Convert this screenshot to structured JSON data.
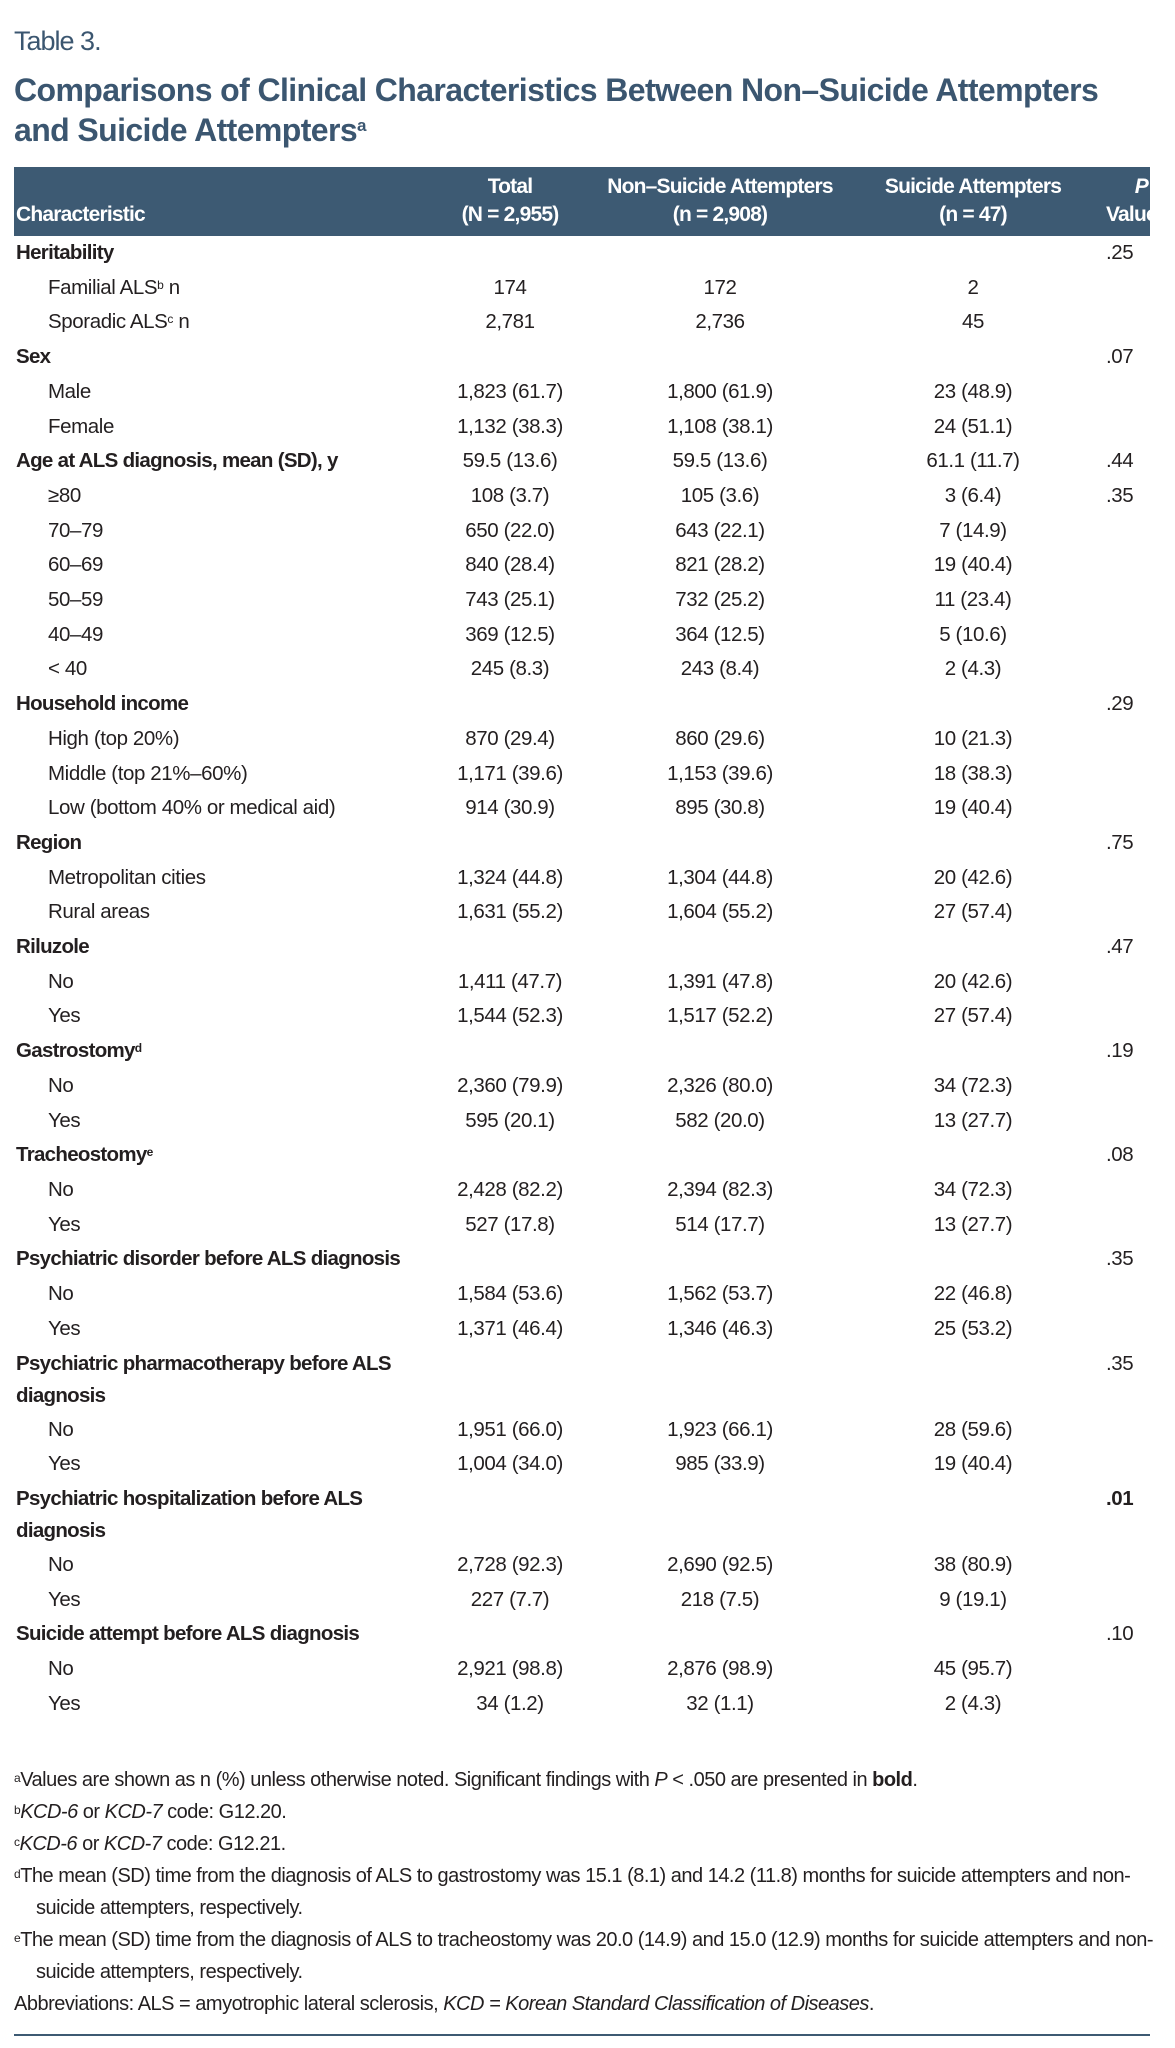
{
  "table_label": "Table 3.",
  "title": "Comparisons of Clinical Characteristics Between Non–Suicide Attempters and Suicide Attempters",
  "title_sup": "a",
  "header": {
    "characteristic": "Characteristic",
    "total": "Total",
    "total_n": "(N = 2,955)",
    "non": "Non–Suicide Attempters",
    "non_n": "(n = 2,908)",
    "sui": "Suicide Attempters",
    "sui_n": "(n = 47)",
    "p1": "P",
    "p2": "Value"
  },
  "rows": [
    {
      "label": "Heritability",
      "bold": true,
      "p": ".25"
    },
    {
      "label": "Familial ALS",
      "sup": "b",
      "suffix": " n",
      "total": "174",
      "non": "172",
      "sui": "2"
    },
    {
      "label": "Sporadic ALS",
      "sup": "c",
      "suffix": " n",
      "total": "2,781",
      "non": "2,736",
      "sui": "45"
    },
    {
      "label": "Sex",
      "bold": true,
      "p": ".07"
    },
    {
      "label": "Male",
      "total": "1,823 (61.7)",
      "non": "1,800 (61.9)",
      "sui": "23 (48.9)"
    },
    {
      "label": "Female",
      "total": "1,132 (38.3)",
      "non": "1,108 (38.1)",
      "sui": "24 (51.1)"
    },
    {
      "label": "Age at ALS diagnosis, mean (SD), y",
      "bold": true,
      "total": "59.5 (13.6)",
      "non": "59.5 (13.6)",
      "sui": "61.1 (11.7)",
      "p": ".44"
    },
    {
      "label": "≥80",
      "total": "108 (3.7)",
      "non": "105 (3.6)",
      "sui": "3 (6.4)",
      "p": ".35"
    },
    {
      "label": "70–79",
      "total": "650 (22.0)",
      "non": "643 (22.1)",
      "sui": "7 (14.9)"
    },
    {
      "label": "60–69",
      "total": "840 (28.4)",
      "non": "821 (28.2)",
      "sui": "19 (40.4)"
    },
    {
      "label": "50–59",
      "total": "743 (25.1)",
      "non": "732 (25.2)",
      "sui": "11 (23.4)"
    },
    {
      "label": "40–49",
      "total": "369 (12.5)",
      "non": "364 (12.5)",
      "sui": "5 (10.6)"
    },
    {
      "label": "< 40",
      "total": "245 (8.3)",
      "non": "243 (8.4)",
      "sui": "2 (4.3)"
    },
    {
      "label": "Household income",
      "bold": true,
      "p": ".29"
    },
    {
      "label": "High (top 20%)",
      "total": "870 (29.4)",
      "non": "860 (29.6)",
      "sui": "10 (21.3)"
    },
    {
      "label": "Middle (top 21%–60%)",
      "total": "1,171 (39.6)",
      "non": "1,153 (39.6)",
      "sui": "18 (38.3)"
    },
    {
      "label": "Low (bottom 40% or medical aid)",
      "total": "914 (30.9)",
      "non": "895 (30.8)",
      "sui": "19 (40.4)"
    },
    {
      "label": "Region",
      "bold": true,
      "p": ".75"
    },
    {
      "label": "Metropolitan cities",
      "total": "1,324 (44.8)",
      "non": "1,304 (44.8)",
      "sui": "20 (42.6)"
    },
    {
      "label": "Rural areas",
      "total": "1,631 (55.2)",
      "non": "1,604 (55.2)",
      "sui": "27 (57.4)"
    },
    {
      "label": "Riluzole",
      "bold": true,
      "p": ".47"
    },
    {
      "label": "No",
      "total": "1,411 (47.7)",
      "non": "1,391 (47.8)",
      "sui": "20 (42.6)"
    },
    {
      "label": "Yes",
      "total": "1,544 (52.3)",
      "non": "1,517 (52.2)",
      "sui": "27 (57.4)"
    },
    {
      "label": "Gastrostomy",
      "sup": "d",
      "bold": true,
      "p": ".19"
    },
    {
      "label": "No",
      "total": "2,360 (79.9)",
      "non": "2,326 (80.0)",
      "sui": "34 (72.3)"
    },
    {
      "label": "Yes",
      "total": "595 (20.1)",
      "non": "582 (20.0)",
      "sui": "13 (27.7)"
    },
    {
      "label": "Tracheostomy",
      "sup": "e",
      "bold": true,
      "p": ".08"
    },
    {
      "label": "No",
      "total": "2,428 (82.2)",
      "non": "2,394 (82.3)",
      "sui": "34 (72.3)"
    },
    {
      "label": "Yes",
      "total": "527 (17.8)",
      "non": "514 (17.7)",
      "sui": "13 (27.7)"
    },
    {
      "label": "Psychiatric disorder before ALS diagnosis",
      "bold": true,
      "p": ".35"
    },
    {
      "label": "No",
      "total": "1,584 (53.6)",
      "non": "1,562 (53.7)",
      "sui": "22 (46.8)"
    },
    {
      "label": "Yes",
      "total": "1,371 (46.4)",
      "non": "1,346 (46.3)",
      "sui": "25 (53.2)"
    },
    {
      "label": "Psychiatric pharmacotherapy before ALS diagnosis",
      "bold": true,
      "p": ".35"
    },
    {
      "label": "No",
      "total": "1,951 (66.0)",
      "non": "1,923 (66.1)",
      "sui": "28 (59.6)"
    },
    {
      "label": "Yes",
      "total": "1,004 (34.0)",
      "non": "985 (33.9)",
      "sui": "19 (40.4)"
    },
    {
      "label": "Psychiatric hospitalization before ALS diagnosis",
      "bold": true,
      "p": ".01",
      "p_bold": true
    },
    {
      "label": "No",
      "total": "2,728 (92.3)",
      "non": "2,690 (92.5)",
      "sui": "38 (80.9)"
    },
    {
      "label": "Yes",
      "total": "227 (7.7)",
      "non": "218 (7.5)",
      "sui": "9 (19.1)"
    },
    {
      "label": "Suicide attempt before ALS diagnosis",
      "bold": true,
      "p": ".10"
    },
    {
      "label": "No",
      "total": "2,921 (98.8)",
      "non": "2,876 (98.9)",
      "sui": "45 (95.7)"
    },
    {
      "label": "Yes",
      "total": "34 (1.2)",
      "non": "32 (1.1)",
      "sui": "2 (4.3)"
    }
  ],
  "footnotes": {
    "a": {
      "mark": "a",
      "t1": "Values are shown as n (%) unless otherwise noted. Significant findings with ",
      "t_italic": "P",
      "t2": " < .050 are presented in ",
      "t_bold": "bold",
      "t3": "."
    },
    "b": {
      "mark": "b",
      "i1": "KCD-6",
      "t1": " or ",
      "i2": "KCD-7",
      "t2": " code: G12.20."
    },
    "c": {
      "mark": "c",
      "i1": "KCD-6",
      "t1": " or ",
      "i2": "KCD-7",
      "t2": " code: G12.21."
    },
    "d": {
      "mark": "d",
      "text": "The mean (SD) time from the diagnosis of ALS to gastrostomy was 15.1 (8.1) and 14.2 (11.8) months for suicide attempters and non-suicide attempters, respectively."
    },
    "e": {
      "mark": "e",
      "text": "The mean (SD) time from the diagnosis of ALS to tracheostomy was 20.0 (14.9) and 15.0 (12.9) months for suicide attempters and non-suicide attempters, respectively."
    },
    "abbr": {
      "t1": "Abbreviations: ALS = amyotrophic lateral sclerosis, ",
      "i1": "KCD = Korean Standard Classification of Diseases",
      "t2": "."
    }
  },
  "colors": {
    "accent": "#3d5a73",
    "title": "#3b5670"
  }
}
